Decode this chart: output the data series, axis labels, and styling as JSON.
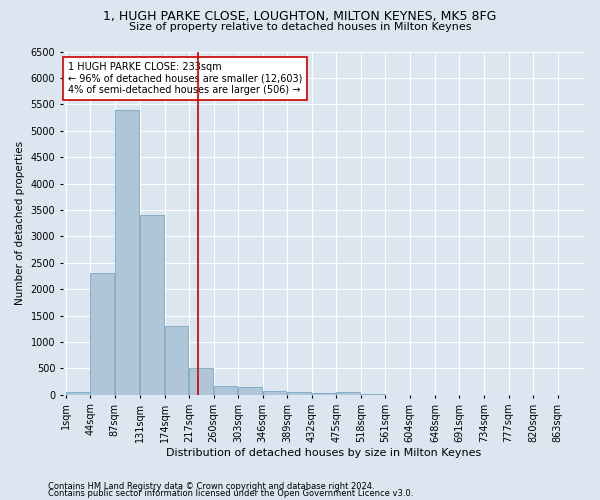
{
  "title1": "1, HUGH PARKE CLOSE, LOUGHTON, MILTON KEYNES, MK5 8FG",
  "title2": "Size of property relative to detached houses in Milton Keynes",
  "xlabel": "Distribution of detached houses by size in Milton Keynes",
  "ylabel": "Number of detached properties",
  "footer1": "Contains HM Land Registry data © Crown copyright and database right 2024.",
  "footer2": "Contains public sector information licensed under the Open Government Licence v3.0.",
  "bin_labels": [
    "1sqm",
    "44sqm",
    "87sqm",
    "131sqm",
    "174sqm",
    "217sqm",
    "260sqm",
    "303sqm",
    "346sqm",
    "389sqm",
    "432sqm",
    "475sqm",
    "518sqm",
    "561sqm",
    "604sqm",
    "648sqm",
    "691sqm",
    "734sqm",
    "777sqm",
    "820sqm",
    "863sqm"
  ],
  "bin_edges": [
    1,
    44,
    87,
    131,
    174,
    217,
    260,
    303,
    346,
    389,
    432,
    475,
    518,
    561,
    604,
    648,
    691,
    734,
    777,
    820,
    863
  ],
  "bar_values": [
    60,
    2300,
    5400,
    3400,
    1300,
    500,
    175,
    150,
    75,
    50,
    25,
    50,
    10,
    5,
    5,
    5,
    3,
    2,
    2,
    2,
    2
  ],
  "bar_color": "#aec6d8",
  "bar_edge_color": "#6a9fbe",
  "property_size": 233,
  "vline_color": "#cc0000",
  "annotation_line1": "1 HUGH PARKE CLOSE: 233sqm",
  "annotation_line2": "← 96% of detached houses are smaller (12,603)",
  "annotation_line3": "4% of semi-detached houses are larger (506) →",
  "annotation_box_color": "#ffffff",
  "annotation_box_edge": "#cc0000",
  "ylim": [
    0,
    6500
  ],
  "yticks": [
    0,
    500,
    1000,
    1500,
    2000,
    2500,
    3000,
    3500,
    4000,
    4500,
    5000,
    5500,
    6000,
    6500
  ],
  "bg_color": "#dce6f1",
  "axes_bg_color": "#dce6f1",
  "title1_fontsize": 9,
  "title2_fontsize": 8,
  "xlabel_fontsize": 8,
  "ylabel_fontsize": 7.5,
  "tick_fontsize": 7,
  "annotation_fontsize": 7,
  "footer_fontsize": 6
}
